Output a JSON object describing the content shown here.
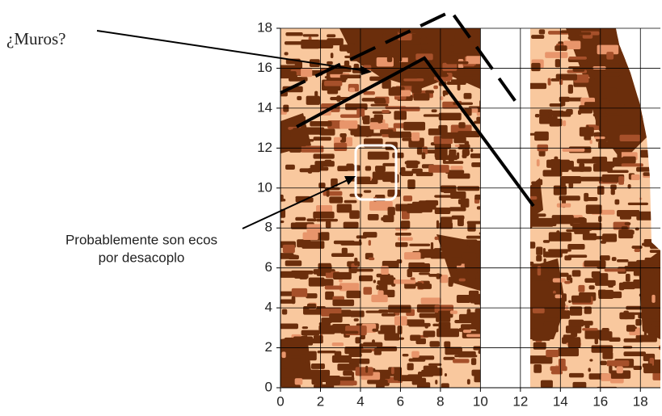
{
  "chart_data": {
    "type": "map",
    "xlim": [
      0,
      19
    ],
    "ylim": [
      0,
      18
    ],
    "xticks": [
      0,
      2,
      4,
      6,
      8,
      10,
      12,
      14,
      16,
      18
    ],
    "yticks": [
      0,
      2,
      4,
      6,
      8,
      10,
      12,
      14,
      16,
      18
    ],
    "grid": true,
    "annotations": [
      "¿Muros?",
      "Probablemente son ecos",
      "por desacoplo"
    ]
  }
}
